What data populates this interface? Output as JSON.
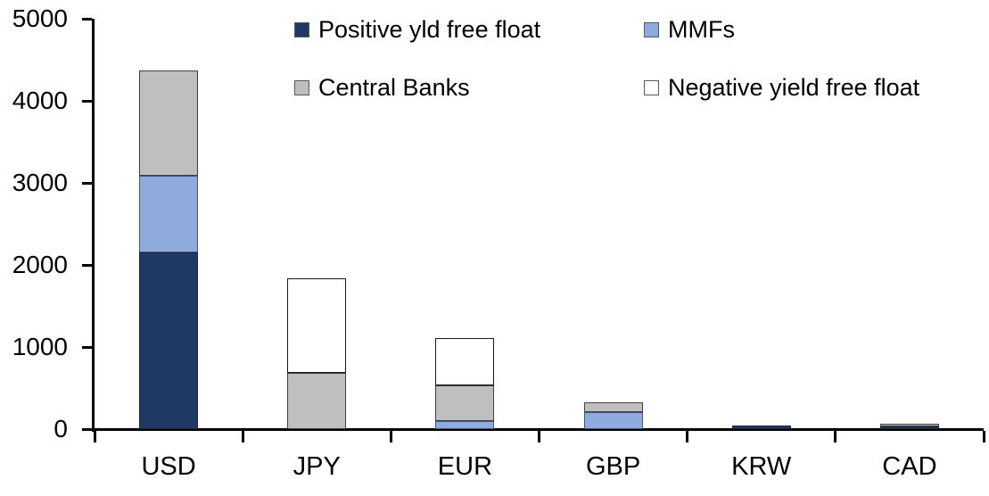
{
  "chart_data": {
    "type": "bar",
    "stacked": true,
    "title": "",
    "xlabel": "",
    "ylabel": "",
    "categories": [
      "USD",
      "JPY",
      "EUR",
      "GBP",
      "KRW",
      "CAD"
    ],
    "series": [
      {
        "name": "Positive yld free float",
        "color": "#1F3864",
        "border": "#1a2740",
        "values": [
          2150,
          0,
          0,
          0,
          40,
          30
        ]
      },
      {
        "name": "MMFs",
        "color": "#8FAADC",
        "border": "#44557c",
        "values": [
          940,
          0,
          100,
          210,
          0,
          0
        ]
      },
      {
        "name": "Central Banks",
        "color": "#BFBFBF",
        "border": "#404040",
        "values": [
          1280,
          690,
          430,
          120,
          0,
          35
        ]
      },
      {
        "name": "Negative yield free float",
        "color": "#FFFFFF",
        "border": "#1a1a1a",
        "values": [
          0,
          1150,
          580,
          0,
          0,
          0
        ]
      }
    ],
    "ylim": [
      0,
      5000
    ],
    "yticks": [
      0,
      1000,
      2000,
      3000,
      4000,
      5000
    ],
    "grid": false,
    "legend_position": "top"
  },
  "colors": {
    "axis": "#000000",
    "text": "#000000",
    "background": "#FFFFFF"
  }
}
